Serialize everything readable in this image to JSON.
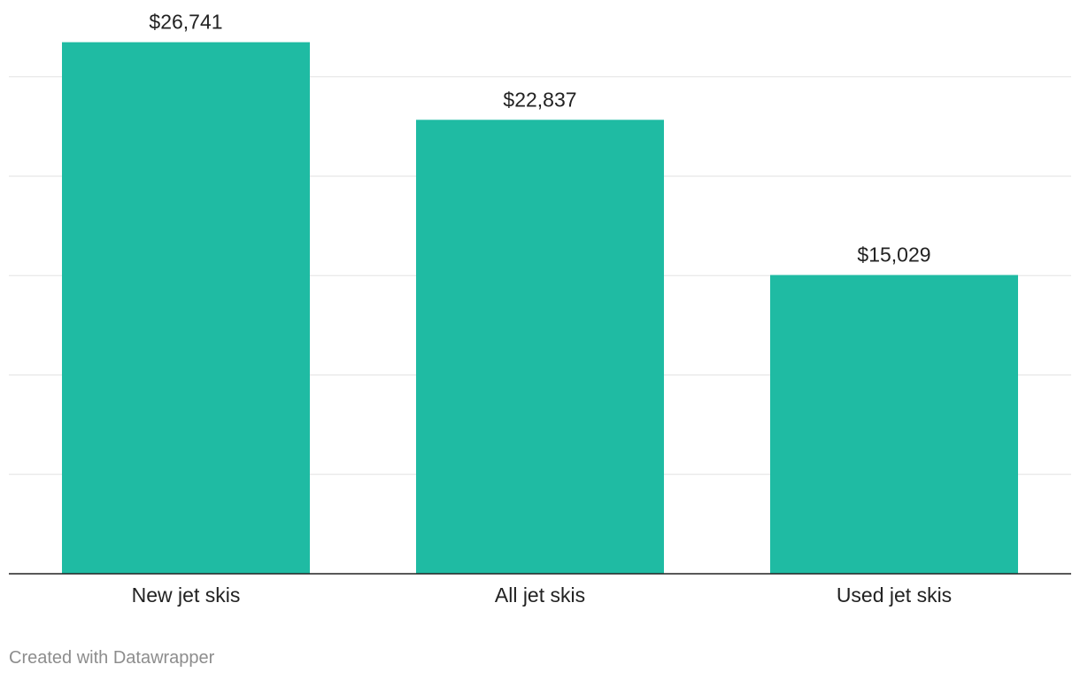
{
  "chart_data": {
    "type": "bar",
    "categories": [
      "New jet skis",
      "All jet skis",
      "Used jet skis"
    ],
    "values": [
      26741,
      22837,
      15029
    ],
    "value_labels": [
      "$26,741",
      "$22,837",
      "$15,029"
    ],
    "title": "",
    "xlabel": "",
    "ylabel": "",
    "ylim": [
      0,
      28500
    ],
    "gridlines": [
      5000,
      10000,
      15000,
      20000,
      25000
    ],
    "grid": true,
    "y_tick_labels_visible": false,
    "bar_color": "#1fbba3"
  },
  "footer": {
    "credit": "Created with Datawrapper"
  }
}
